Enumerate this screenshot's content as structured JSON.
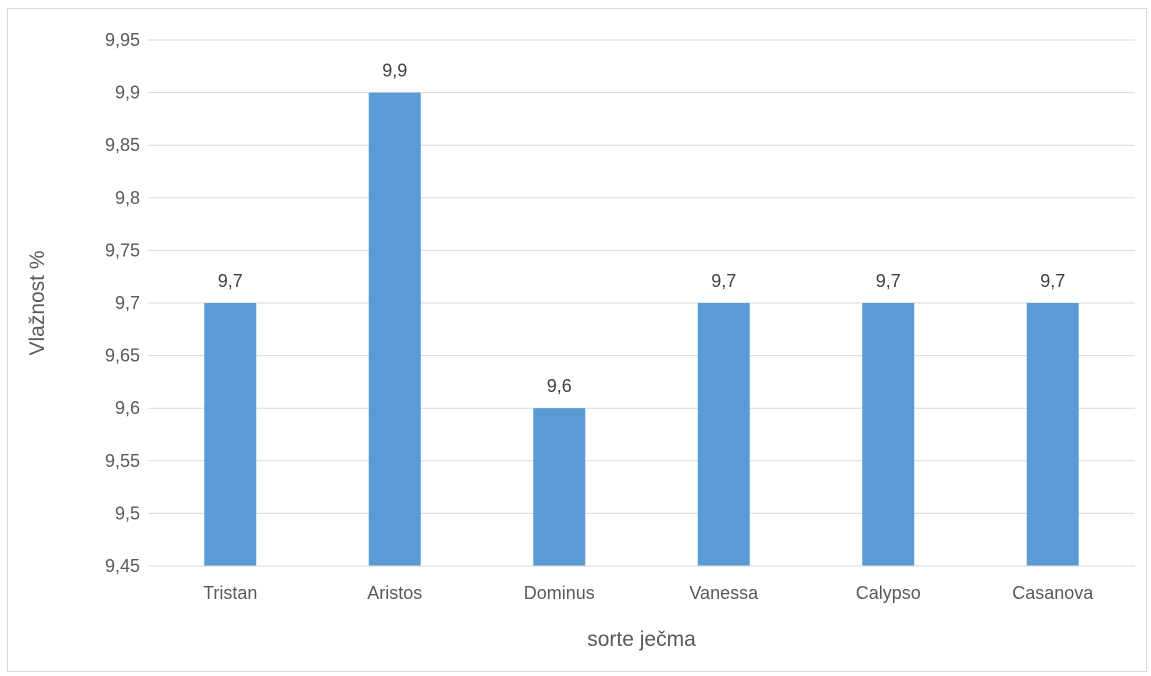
{
  "chart_data": {
    "type": "bar",
    "title": "",
    "xlabel": "sorte ječma",
    "ylabel": "Vlažnost %",
    "categories": [
      "Tristan",
      "Aristos",
      "Dominus",
      "Vanessa",
      "Calypso",
      "Casanova"
    ],
    "values": [
      9.7,
      9.9,
      9.6,
      9.7,
      9.7,
      9.7
    ],
    "data_labels": [
      "9,7",
      "9,9",
      "9,6",
      "9,7",
      "9,7",
      "9,7"
    ],
    "ylim": [
      9.45,
      9.95
    ],
    "y_ticks": [
      9.45,
      9.5,
      9.55,
      9.6,
      9.65,
      9.7,
      9.75,
      9.8,
      9.85,
      9.9,
      9.95
    ],
    "y_tick_labels": [
      "9,45",
      "9,5",
      "9,55",
      "9,6",
      "9,65",
      "9,7",
      "9,75",
      "9,8",
      "9,85",
      "9,9",
      "9,95"
    ],
    "grid": true,
    "legend": "none",
    "colors": {
      "bar": "#5b9bd5",
      "grid": "#d9d9d9",
      "axis": "#d9d9d9",
      "tick_text": "#595959",
      "label_text": "#404040"
    }
  }
}
